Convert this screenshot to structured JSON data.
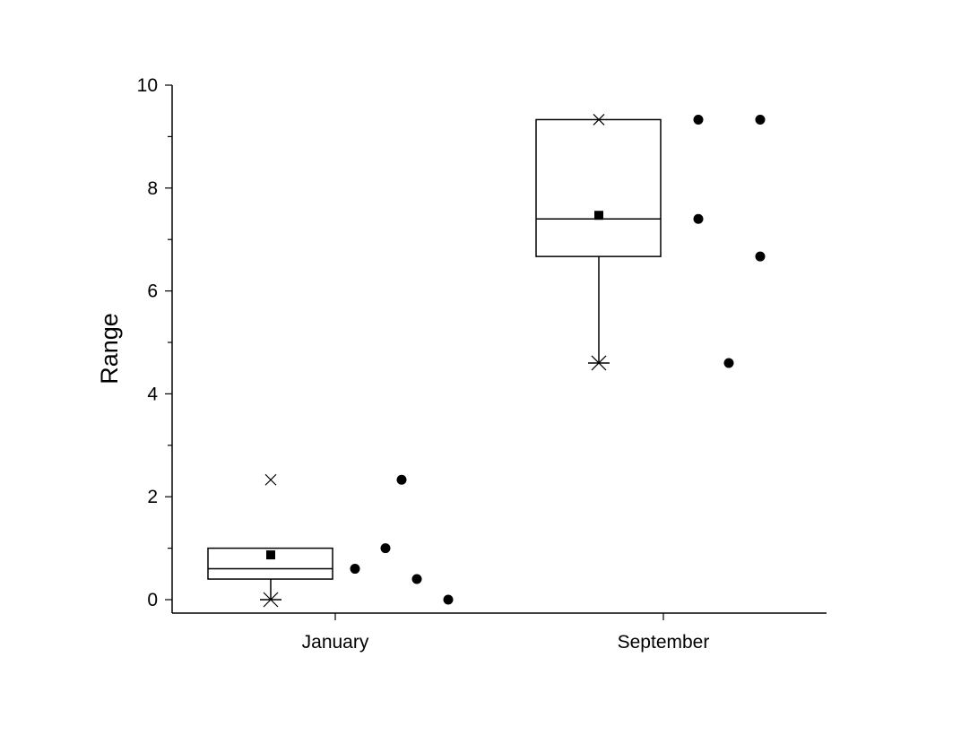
{
  "chart_data": {
    "type": "box",
    "ylabel": "Range",
    "xlabel": "",
    "ylim": [
      -0.25,
      10
    ],
    "yticks": [
      "0",
      "2",
      "4",
      "6",
      "8",
      "10"
    ],
    "categories": [
      "January",
      "September"
    ],
    "boxes": [
      {
        "category": "January",
        "q1": 0.4,
        "median": 0.6,
        "q3": 1.0,
        "mean": 0.87,
        "whisker_low": 0.0,
        "whisker_high": 1.0,
        "min": 0.0,
        "max": 2.33,
        "points": [
          0.6,
          1.0,
          2.33,
          0.4,
          0.0
        ]
      },
      {
        "category": "September",
        "q1": 6.67,
        "median": 7.4,
        "q3": 9.33,
        "mean": 7.47,
        "whisker_low": 4.6,
        "whisker_high": 9.33,
        "min": 4.6,
        "max": 9.33,
        "points": [
          9.33,
          7.4,
          4.6,
          9.33,
          6.67
        ]
      }
    ]
  }
}
